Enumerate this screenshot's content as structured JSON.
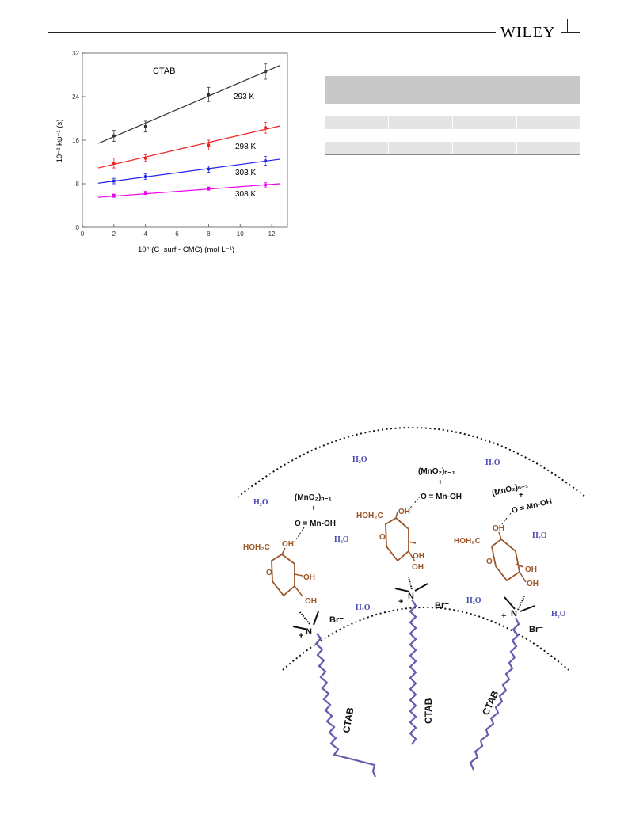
{
  "header": {
    "brand": "WILEY"
  },
  "chart_data": {
    "type": "scatter",
    "title": "CTAB",
    "xlabel": "10⁴ (C_surf - CMC) (mol L⁻¹)",
    "ylabel": "10⁻² kψ⁻¹ (s)",
    "xlim": [
      0,
      13
    ],
    "ylim": [
      0,
      32
    ],
    "xticks": [
      "0",
      "2",
      "4",
      "6",
      "8",
      "10",
      "12"
    ],
    "yticks": [
      "0",
      "8",
      "16",
      "24",
      "32"
    ],
    "series": [
      {
        "name": "293 K",
        "color": "#333333",
        "x": [
          2,
          4,
          8,
          11.6
        ],
        "y": [
          16.8,
          18.5,
          24.4,
          28.6
        ],
        "err": [
          1.0,
          1.0,
          1.3,
          1.4
        ],
        "fit": [
          [
            1,
            15.4
          ],
          [
            12.5,
            29.7
          ]
        ]
      },
      {
        "name": "298 K",
        "color": "#ee2222",
        "x": [
          2,
          4,
          8,
          11.6
        ],
        "y": [
          11.8,
          12.7,
          15.1,
          18.3
        ],
        "err": [
          0.9,
          0.6,
          0.9,
          1.0
        ],
        "fit": [
          [
            1,
            10.9
          ],
          [
            12.5,
            18.6
          ]
        ]
      },
      {
        "name": "303 K",
        "color": "#2222ee",
        "x": [
          2,
          4,
          8,
          11.6
        ],
        "y": [
          8.5,
          9.3,
          10.7,
          12.2
        ],
        "err": [
          0.5,
          0.5,
          0.6,
          0.8
        ],
        "fit": [
          [
            1,
            8.1
          ],
          [
            12.5,
            12.5
          ]
        ]
      },
      {
        "name": "308 K",
        "color": "#ee00ee",
        "x": [
          2,
          4,
          8,
          11.6
        ],
        "y": [
          5.8,
          6.3,
          7.1,
          7.8
        ],
        "err": [
          0.3,
          0.3,
          0.3,
          0.4
        ],
        "fit": [
          [
            1,
            5.5
          ],
          [
            12.5,
            8.0
          ]
        ]
      }
    ]
  },
  "scheme": {
    "water": "H₂O",
    "mn_top": "(MnO₂)ₙ₋₁",
    "plus": "+",
    "mn_bottom": "O = Mn-OH",
    "hoh2c": "HOH₂C",
    "oh": "OH",
    "o": "O",
    "n": "N",
    "bromide": "Br⁻",
    "ctab": "CTAB",
    "colors": {
      "water": "#4a4ab0",
      "sugar": "#9a5528",
      "chain": "#6a5aae"
    }
  }
}
